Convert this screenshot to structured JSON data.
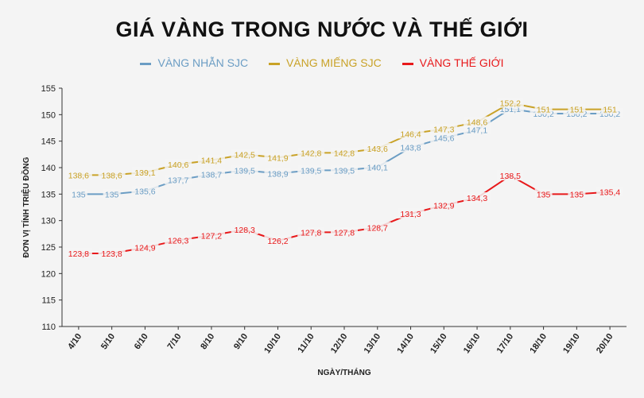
{
  "chart_data": {
    "type": "line",
    "title": "GIÁ VÀNG TRONG NƯỚC VÀ THẾ GIỚI",
    "xlabel": "NGÀY/THÁNG",
    "ylabel": "ĐƠN VỊ TÍNH TRIỆU ĐỒNG",
    "ylim": [
      110,
      155
    ],
    "yticks": [
      "110",
      "115",
      "120",
      "125",
      "130",
      "135",
      "140",
      "145",
      "150",
      "155"
    ],
    "grid": false,
    "legend_position": "top",
    "categories": [
      "4/10",
      "5/10",
      "6/10",
      "7/10",
      "8/10",
      "9/10",
      "10/10",
      "11/10",
      "12/10",
      "13/10",
      "14/10",
      "15/10",
      "16/10",
      "17/10",
      "18/10",
      "19/10",
      "20/10"
    ],
    "series": [
      {
        "name": "VÀNG NHẪN SJC",
        "color": "#6b9dc4",
        "values": [
          135,
          135,
          135.6,
          137.7,
          138.7,
          139.5,
          138.9,
          139.5,
          139.5,
          140.1,
          143.8,
          145.6,
          147.1,
          151.1,
          150.2,
          150.2,
          150.2
        ],
        "labels": [
          "135",
          "135",
          "135,6",
          "137,7",
          "138,7",
          "139,5",
          "138,9",
          "139,5",
          "139,5",
          "140,1",
          "143,8",
          "145,6",
          "147,1",
          "151,1",
          "150,2",
          "150,2",
          "150,2"
        ]
      },
      {
        "name": "VÀNG MIẾNG SJC",
        "color": "#c9a227",
        "values": [
          138.6,
          138.6,
          139.1,
          140.6,
          141.4,
          142.5,
          141.9,
          142.8,
          142.8,
          143.6,
          146.4,
          147.3,
          148.6,
          152.2,
          151,
          151,
          151
        ],
        "labels": [
          "138,6",
          "138,6",
          "139,1",
          "140,6",
          "141,4",
          "142,5",
          "141,9",
          "142,8",
          "142,8",
          "143,6",
          "146,4",
          "147,3",
          "148,6",
          "152,2",
          "151",
          "151",
          "151"
        ]
      },
      {
        "name": "VÀNG THẾ GIỚI",
        "color": "#e8191b",
        "values": [
          123.8,
          123.8,
          124.9,
          126.3,
          127.2,
          128.3,
          126.2,
          127.8,
          127.8,
          128.7,
          131.3,
          132.9,
          134.3,
          138.5,
          135,
          135,
          135.4
        ],
        "labels": [
          "123,8",
          "123,8",
          "124,9",
          "126,3",
          "127,2",
          "128,3",
          "126,2",
          "127,8",
          "127,8",
          "128,7",
          "131,3",
          "132,9",
          "134,3",
          "138,5",
          "135",
          "135",
          "135,4"
        ]
      }
    ]
  }
}
